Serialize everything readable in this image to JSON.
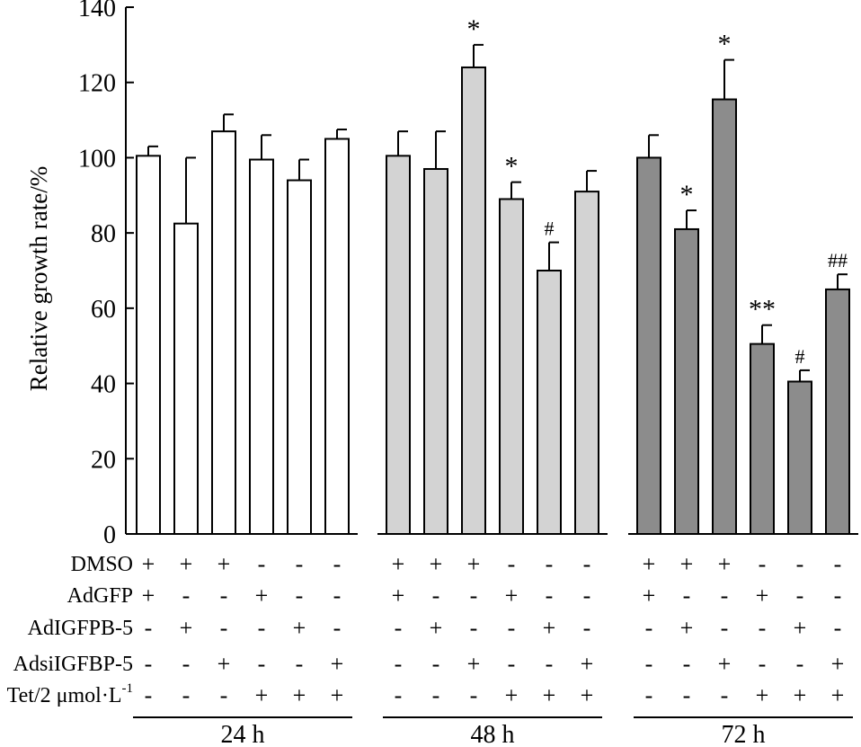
{
  "chart_data": {
    "type": "bar",
    "title": "",
    "xlabel": "",
    "ylabel": "Relative growth rate/%",
    "ylim": [
      0,
      140
    ],
    "yticks": [
      0,
      20,
      40,
      60,
      80,
      100,
      120,
      140
    ],
    "groups": [
      {
        "label": "24 h",
        "fill": "#ffffff",
        "values": [
          100.5,
          82.5,
          107,
          99.5,
          94,
          105
        ],
        "errors": [
          2.5,
          17.5,
          4.5,
          6.5,
          5.5,
          2.5
        ],
        "marks": [
          "",
          "",
          "",
          "",
          "",
          ""
        ]
      },
      {
        "label": "48 h",
        "fill": "#d3d3d3",
        "values": [
          100.5,
          97,
          124,
          89,
          70,
          91
        ],
        "errors": [
          6.5,
          10,
          6,
          4.5,
          7.5,
          5.5
        ],
        "marks": [
          "",
          "",
          "*",
          "*",
          "#",
          ""
        ]
      },
      {
        "label": "72 h",
        "fill": "#8c8c8c",
        "values": [
          100,
          81,
          115.5,
          50.5,
          40.5,
          65
        ],
        "errors": [
          6,
          5,
          10.5,
          5,
          3,
          4
        ],
        "marks": [
          "",
          "*",
          "*",
          "**",
          "#",
          "##"
        ]
      }
    ],
    "treatments": [
      {
        "label": "DMSO",
        "signs": [
          "+",
          "+",
          "+",
          "-",
          "-",
          "-"
        ]
      },
      {
        "label": "AdGFP",
        "signs": [
          "+",
          "-",
          "-",
          "+",
          "-",
          "-"
        ]
      },
      {
        "label": "AdIGFPB-5",
        "signs": [
          "-",
          "+",
          "-",
          "-",
          "+",
          "-"
        ]
      },
      {
        "label": "AdsiIGFBP-5",
        "signs": [
          "-",
          "-",
          "+",
          "-",
          "-",
          "+"
        ]
      },
      {
        "label": "Tet/2 μmol·L",
        "superscript": "-1",
        "signs": [
          "-",
          "-",
          "-",
          "+",
          "+",
          "+"
        ]
      }
    ]
  }
}
